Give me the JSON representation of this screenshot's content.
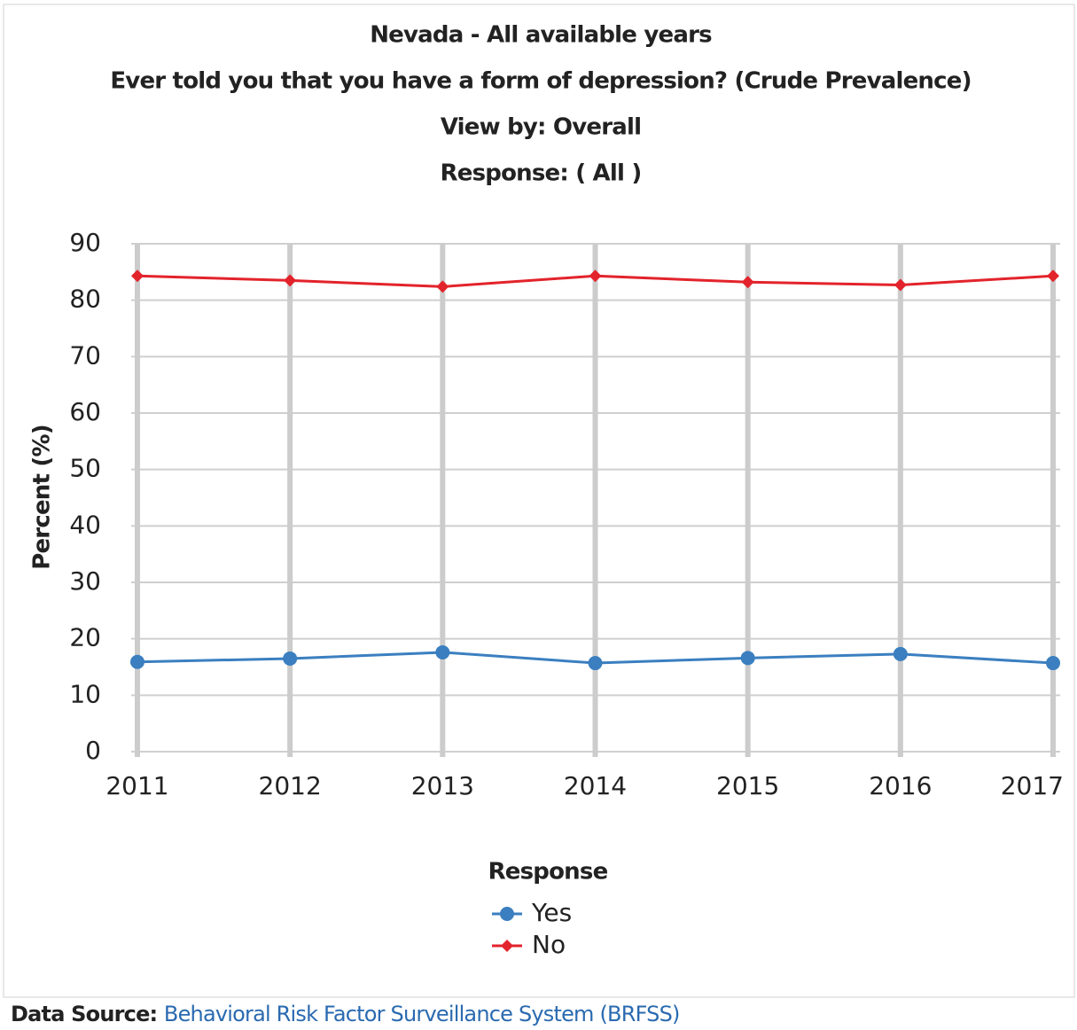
{
  "chart_data": {
    "type": "line",
    "title": "Nevada - All available years",
    "subtitle": "Ever told you that you have a form of depression? (Crude Prevalence)",
    "annotations": [
      "View by: Overall",
      "Response: ( All )"
    ],
    "y_label": "Percent (%)",
    "categories": [
      "2011",
      "2012",
      "2013",
      "2014",
      "2015",
      "2016",
      "2017"
    ],
    "series": [
      {
        "name": "Yes",
        "color": "#3b7fc0",
        "marker": "circle",
        "values": [
          15.9,
          16.5,
          17.6,
          15.7,
          16.6,
          17.3,
          15.7
        ]
      },
      {
        "name": "No",
        "color": "#e3232b",
        "marker": "diamond",
        "values": [
          84.3,
          83.5,
          82.4,
          84.3,
          83.2,
          82.7,
          84.3
        ]
      }
    ],
    "ylim": [
      0,
      90
    ],
    "yticks": [
      0,
      10,
      20,
      30,
      40,
      50,
      60,
      70,
      80,
      90
    ],
    "grid": true,
    "legend_title": "Response",
    "legend_position": "bottom"
  },
  "footer": {
    "label": "Data Source:",
    "link": "Behavioral Risk Factor Surveillance System (BRFSS)"
  }
}
